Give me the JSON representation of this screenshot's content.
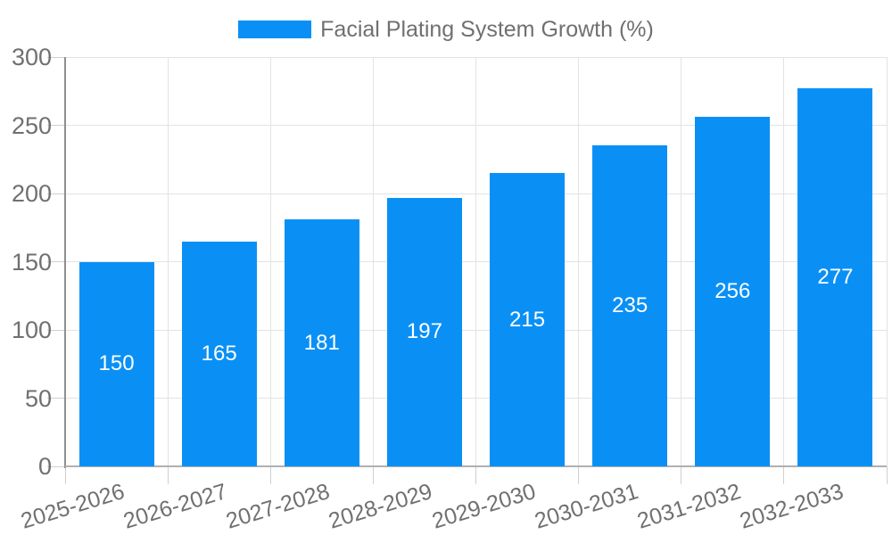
{
  "legend": {
    "label": "Facial Plating System Growth (%)"
  },
  "chart_data": {
    "type": "bar",
    "title": "Facial Plating System Growth (%)",
    "categories": [
      "2025-2026",
      "2026-2027",
      "2027-2028",
      "2028-2029",
      "2029-2030",
      "2030-2031",
      "2031-2032",
      "2032-2033"
    ],
    "values": [
      150,
      165,
      181,
      197,
      215,
      235,
      256,
      277
    ],
    "value_labels": [
      "150",
      "165",
      "181",
      "197",
      "215",
      "235",
      "256",
      "277"
    ],
    "xlabel": "",
    "ylabel": "",
    "ylim": [
      0,
      300
    ],
    "yticks": [
      0,
      50,
      100,
      150,
      200,
      250,
      300
    ],
    "grid": true,
    "legend_position": "top",
    "bar_color": "#0a90f5",
    "value_label_color": "#ffffff",
    "axis_text_color": "#707070"
  }
}
